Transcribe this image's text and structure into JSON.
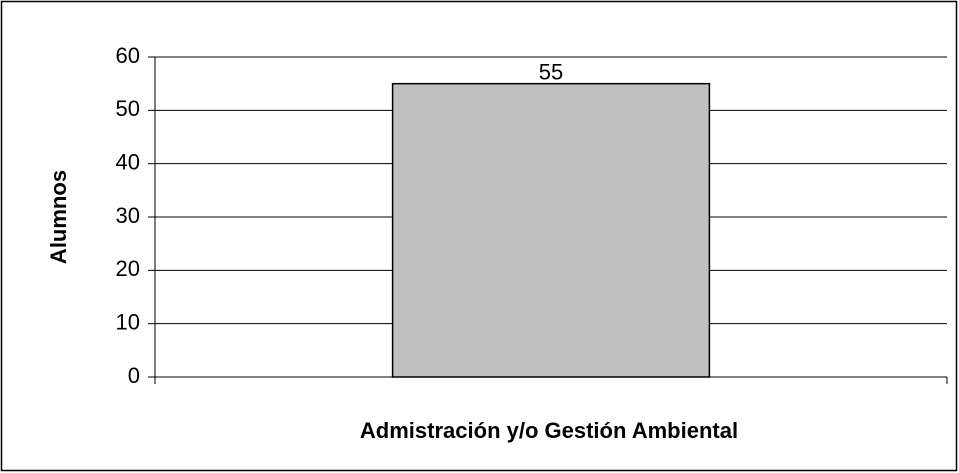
{
  "chart_data": {
    "type": "bar",
    "x_label": "Admistración y/o Gestión Ambiental",
    "y_label": "Alumnos",
    "categories": [
      null
    ],
    "values": [
      55
    ],
    "color": "#c0c0c0",
    "ylim": [
      0,
      60
    ],
    "yticks": [
      0,
      10,
      20,
      30,
      40,
      50,
      60
    ],
    "grid": true
  }
}
